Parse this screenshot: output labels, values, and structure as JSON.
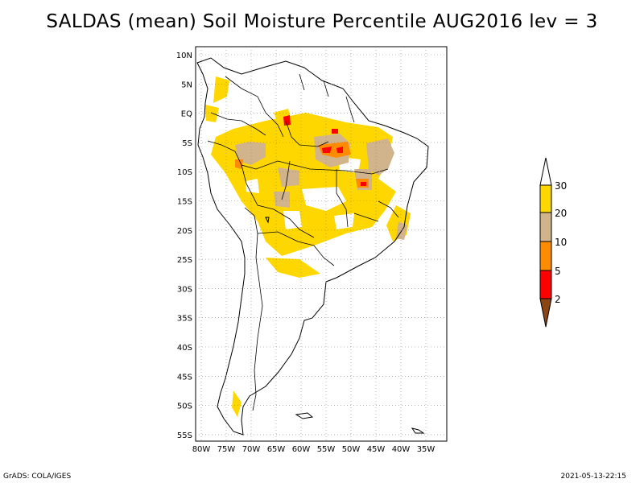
{
  "title": "SALDAS (mean) Soil Moisture Percentile AUG2016 lev = 3",
  "footer": {
    "left": "GrADS: COLA/IGES",
    "right": "2021-05-13-22:15"
  },
  "lat_labels": [
    "10N",
    "5N",
    "EQ",
    "5S",
    "10S",
    "15S",
    "20S",
    "25S",
    "30S",
    "35S",
    "40S",
    "45S",
    "50S",
    "55S"
  ],
  "lon_labels": [
    "80W",
    "75W",
    "70W",
    "65W",
    "60W",
    "55W",
    "50W",
    "45W",
    "40W",
    "35W"
  ],
  "legend": {
    "labels": [
      "30",
      "20",
      "10",
      "5",
      "2"
    ],
    "colors": {
      "above_30": "#ffffff",
      "20_30": "#ffd700",
      "10_20": "#d2b48c",
      "5_10": "#ff8c00",
      "2_5": "#ff0000",
      "below_2": "#8b4513"
    }
  },
  "chart_data": {
    "type": "map",
    "title": "SALDAS (mean) Soil Moisture Percentile AUG2016 lev = 3",
    "region": "South America",
    "lon_range": [
      -81,
      -31
    ],
    "lat_range": [
      -56,
      11
    ],
    "variable": "Soil Moisture Percentile",
    "period": "AUG2016",
    "level": 3,
    "contour_levels": [
      2,
      5,
      10,
      20,
      30
    ]
  }
}
